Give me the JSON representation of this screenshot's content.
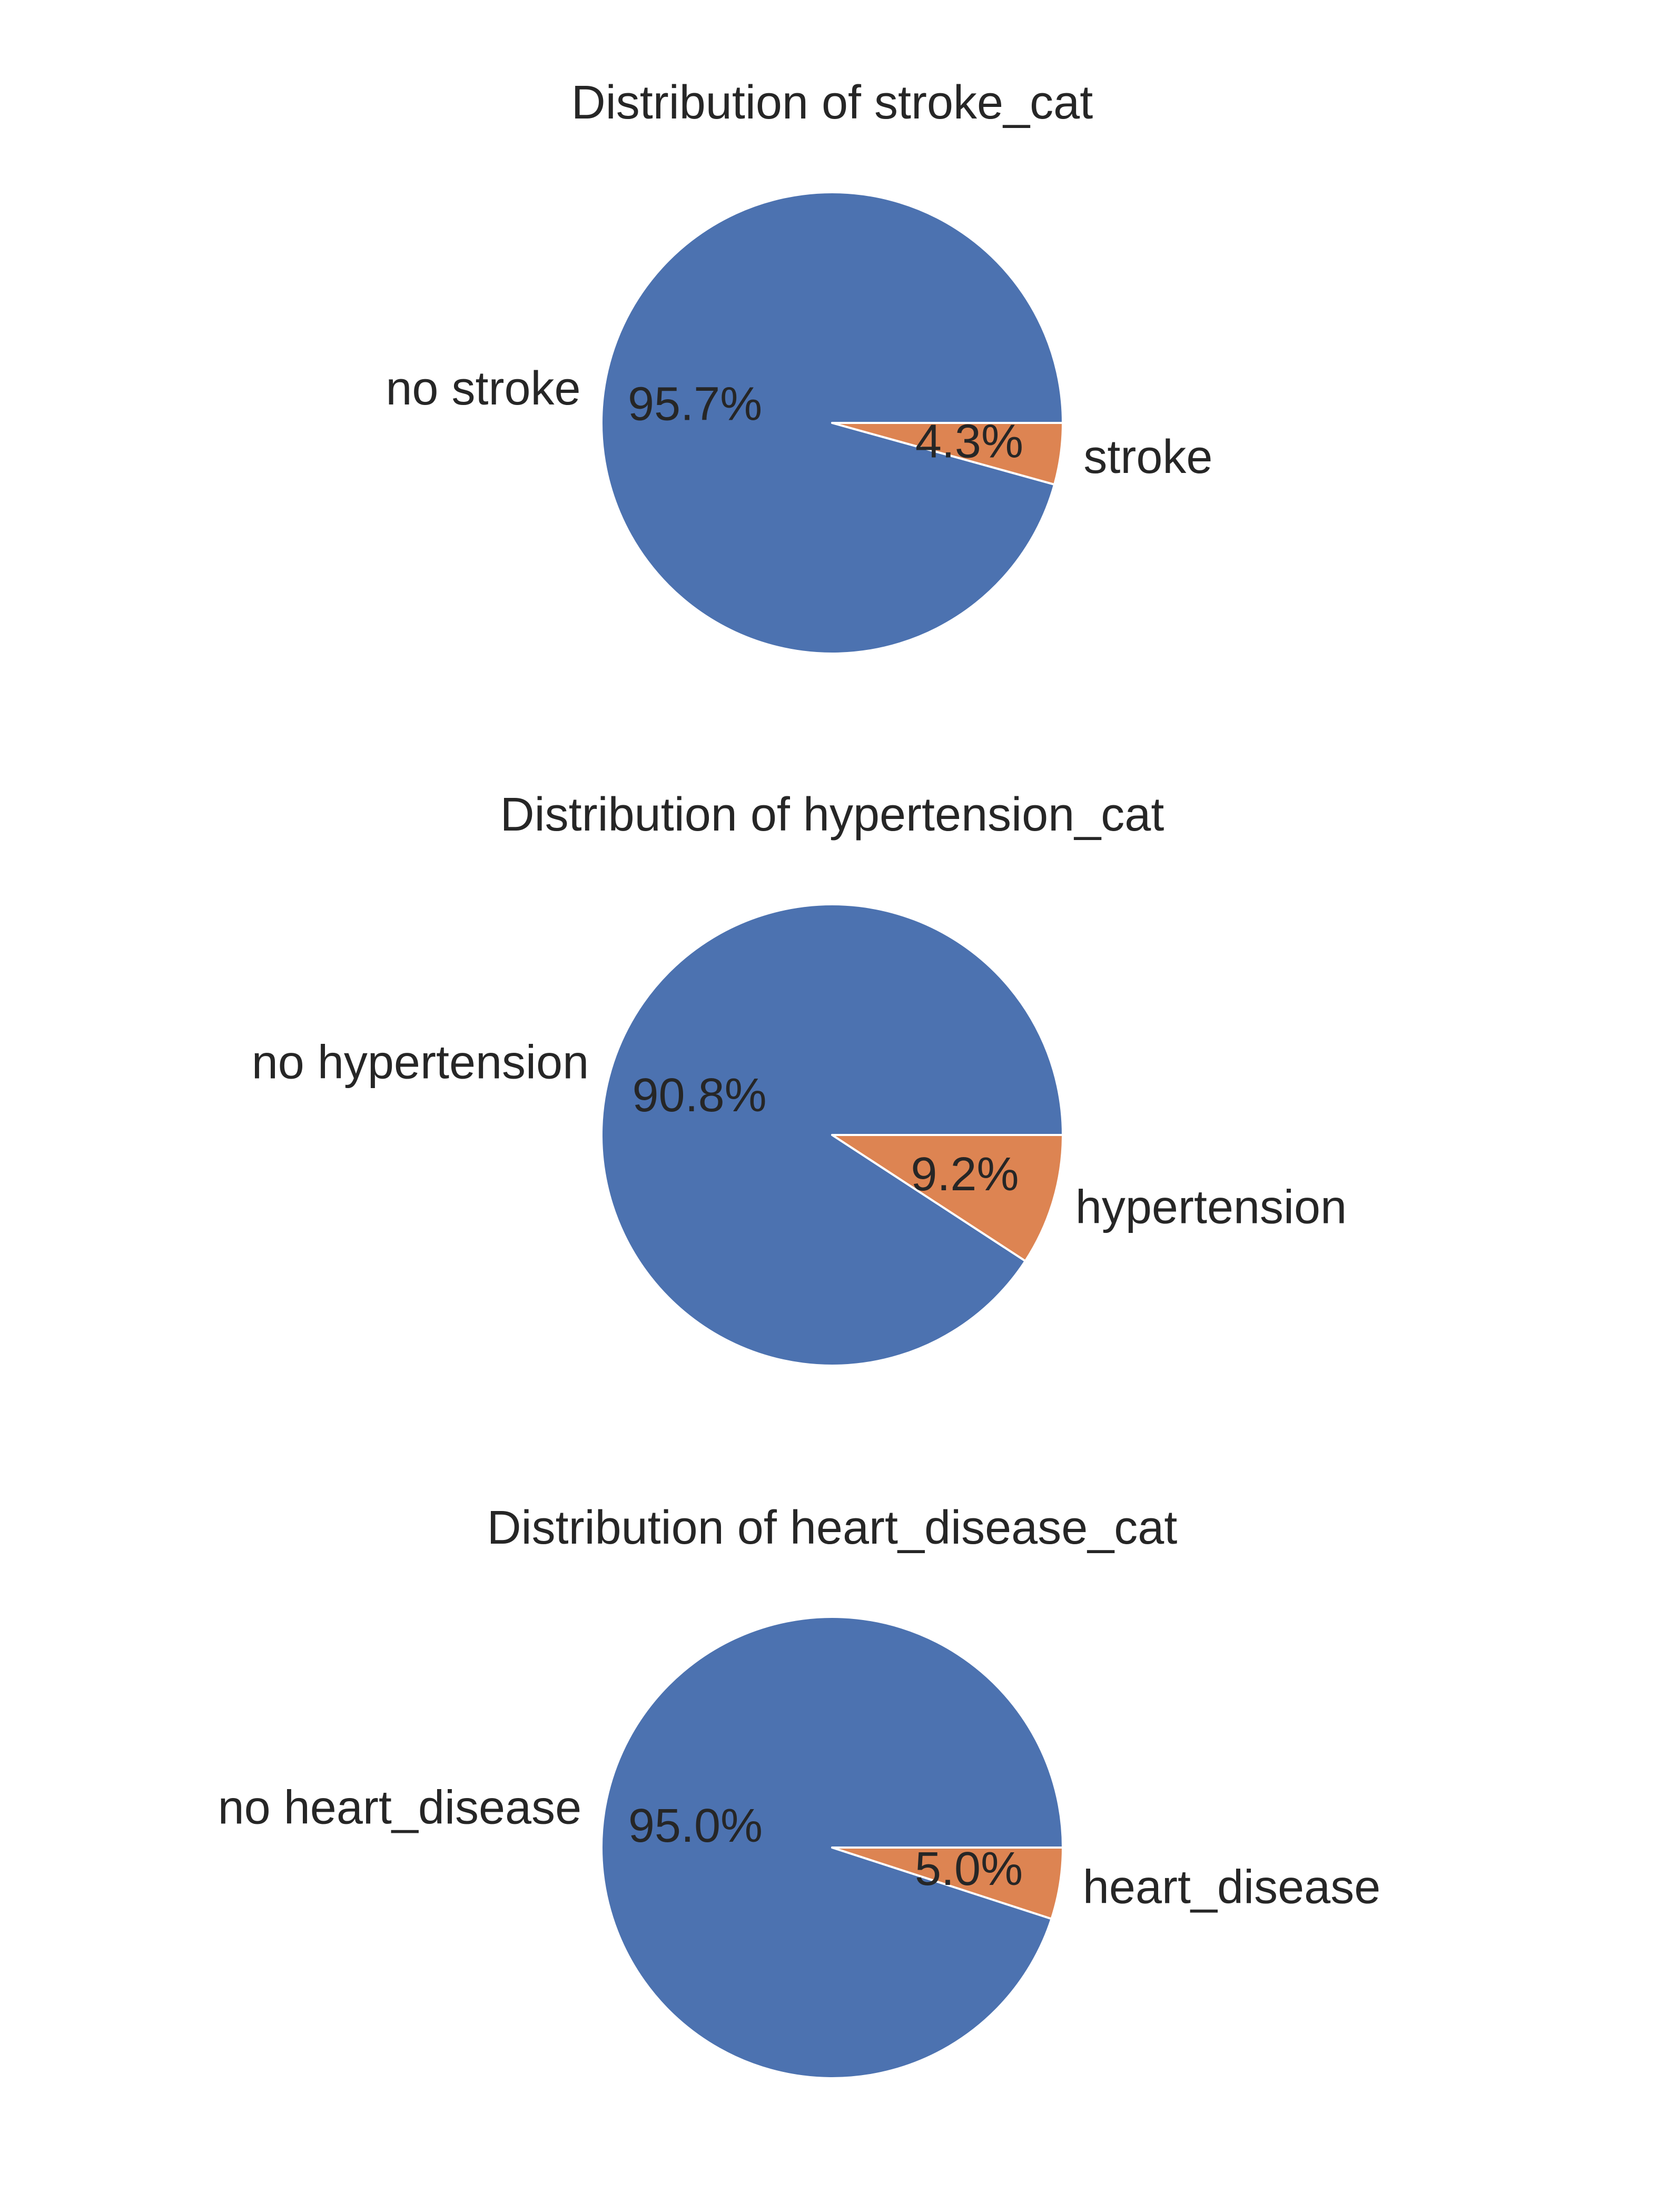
{
  "chart_data": [
    {
      "type": "pie",
      "title": "Distribution of stroke_cat",
      "slices": [
        {
          "label": "no stroke",
          "value": 95.7,
          "pct_label": "95.7%",
          "color": "#4c72b0"
        },
        {
          "label": "stroke",
          "value": 4.3,
          "pct_label": "4.3%",
          "color": "#dd8452"
        }
      ],
      "start_angle": 0,
      "direction": "counterclockwise"
    },
    {
      "type": "pie",
      "title": "Distribution of hypertension_cat",
      "slices": [
        {
          "label": "no hypertension",
          "value": 90.8,
          "pct_label": "90.8%",
          "color": "#4c72b0"
        },
        {
          "label": "hypertension",
          "value": 9.2,
          "pct_label": "9.2%",
          "color": "#dd8452"
        }
      ],
      "start_angle": 0,
      "direction": "counterclockwise"
    },
    {
      "type": "pie",
      "title": "Distribution of heart_disease_cat",
      "slices": [
        {
          "label": "no heart_disease",
          "value": 95.0,
          "pct_label": "95.0%",
          "color": "#4c72b0"
        },
        {
          "label": "heart_disease",
          "value": 5.0,
          "pct_label": "5.0%",
          "color": "#dd8452"
        }
      ],
      "start_angle": 0,
      "direction": "counterclockwise"
    }
  ]
}
